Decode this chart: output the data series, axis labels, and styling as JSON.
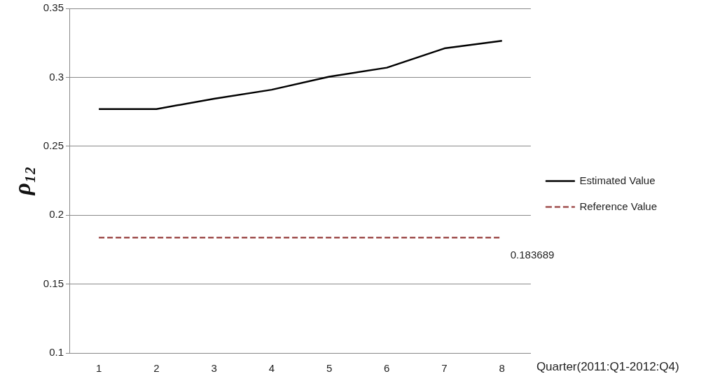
{
  "chart_data": {
    "type": "line",
    "xlabel": "Quarter(2011:Q1-2012:Q4)",
    "ylabel": "ρ₁₂",
    "categories": [
      "1",
      "2",
      "3",
      "4",
      "5",
      "6",
      "7",
      "8"
    ],
    "series": [
      {
        "name": "Estimated Value",
        "color": "#000000",
        "line_style": "solid",
        "values": [
          0.277,
          0.277,
          0.2845,
          0.291,
          0.3005,
          0.307,
          0.321,
          0.3265
        ]
      },
      {
        "name": "Reference Value",
        "color": "#a0504f",
        "line_style": "dashed",
        "values": [
          0.183689,
          0.183689,
          0.183689,
          0.183689,
          0.183689,
          0.183689,
          0.183689,
          0.183689
        ]
      }
    ],
    "ylim": [
      0.1,
      0.35
    ],
    "yticks": [
      0.1,
      0.15,
      0.2,
      0.25,
      0.3,
      0.35
    ],
    "grid": "y",
    "legend": "right",
    "marker": "none",
    "annotations": [
      {
        "text": "0.183689",
        "x": "8",
        "y": 0.183689
      }
    ]
  }
}
